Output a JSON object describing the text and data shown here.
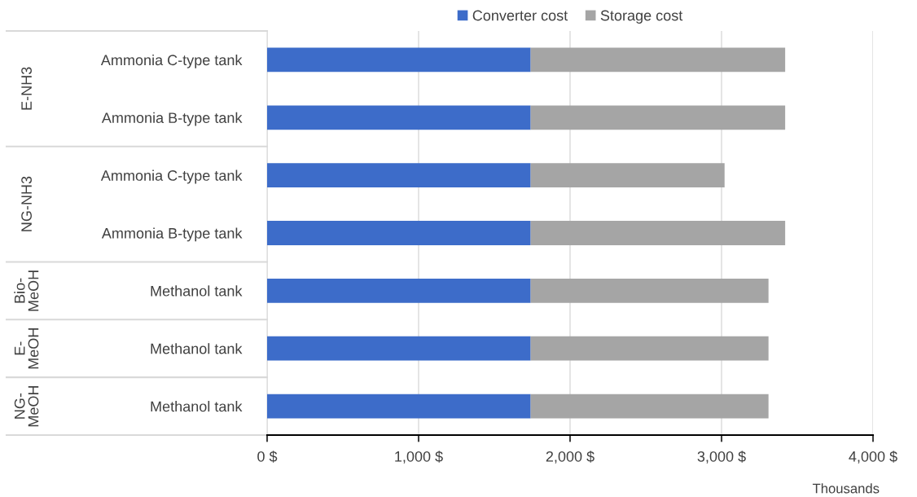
{
  "chart_data": {
    "type": "bar",
    "orientation": "horizontal",
    "stacked": true,
    "categories": [
      "Ammonia C-type tank",
      "Ammonia B-type tank",
      "Ammonia C-type tank",
      "Ammonia B-type tank",
      "Methanol tank",
      "Methanol tank",
      "Methanol tank"
    ],
    "series": [
      {
        "name": "Converter cost",
        "color": "#3d6cc9",
        "values": [
          1740,
          1740,
          1740,
          1740,
          1740,
          1740,
          1740
        ]
      },
      {
        "name": "Storage cost",
        "color": "#a5a5a5",
        "values": [
          1680,
          1680,
          1280,
          1680,
          1570,
          1570,
          1570
        ]
      }
    ],
    "annotations": [
      "E-NH3",
      "NG-NH3",
      "Bio-\nMeOH",
      "E-\nMeOH",
      "NG-\nMeOH"
    ],
    "xlabel": "Thousands",
    "xlim": [
      0,
      4000
    ],
    "xticks": [
      {
        "value": 0,
        "label": "0 $"
      },
      {
        "value": 1000,
        "label": "1,000 $"
      },
      {
        "value": 2000,
        "label": "2,000 $"
      },
      {
        "value": 3000,
        "label": "3,000 $"
      },
      {
        "value": 4000,
        "label": "4,000 $"
      }
    ],
    "grid": "x",
    "legend": "top"
  }
}
